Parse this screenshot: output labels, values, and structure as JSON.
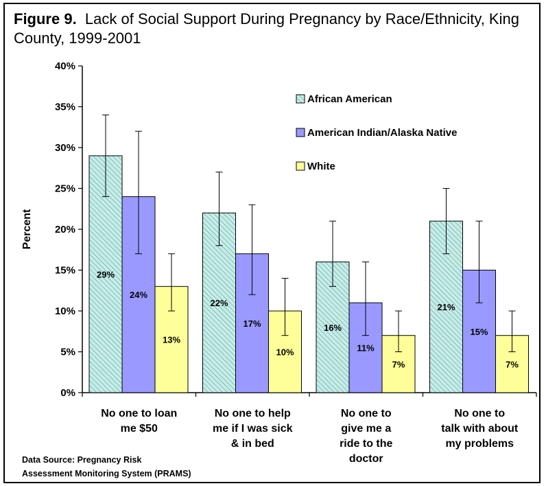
{
  "figure": {
    "label": "Figure 9.",
    "title": "Lack of Social Support During Pregnancy by Race/Ethnicity, King County, 1999-2001"
  },
  "source": {
    "line1": "Data Source: Pregnancy Risk",
    "line2": "Assessment Monitoring System (PRAMS)"
  },
  "chart_data": {
    "type": "bar",
    "ylabel": "Percent",
    "xlabel": "",
    "ylim": [
      0,
      40
    ],
    "yticks": [
      "0%",
      "5%",
      "10%",
      "15%",
      "20%",
      "25%",
      "30%",
      "35%",
      "40%"
    ],
    "grid": false,
    "legend_position": "top-right",
    "categories": [
      [
        "No one to loan",
        "me $50"
      ],
      [
        "No one  to help",
        "me if I was sick",
        "& in bed"
      ],
      [
        "No one to",
        "give me a",
        "ride to the",
        "doctor"
      ],
      [
        "No one to",
        "talk with about",
        "my problems"
      ]
    ],
    "series": [
      {
        "name": "African American",
        "color": "#c8ece6",
        "pattern": "diagonal-hatch",
        "values": [
          29,
          22,
          16,
          21
        ],
        "labels": [
          "29%",
          "22%",
          "16%",
          "21%"
        ],
        "ci_low": [
          24,
          18,
          13,
          17
        ],
        "ci_high": [
          34,
          27,
          21,
          25
        ]
      },
      {
        "name": "American Indian/Alaska Native",
        "color": "#9999ff",
        "pattern": "solid",
        "values": [
          24,
          17,
          11,
          15
        ],
        "labels": [
          "24%",
          "17%",
          "11%",
          "15%"
        ],
        "ci_low": [
          17,
          12,
          7,
          11
        ],
        "ci_high": [
          32,
          23,
          16,
          21
        ]
      },
      {
        "name": "White",
        "color": "#ffff99",
        "pattern": "solid",
        "values": [
          13,
          10,
          7,
          7
        ],
        "labels": [
          "13%",
          "10%",
          "7%",
          "7%"
        ],
        "ci_low": [
          10,
          7,
          5,
          5
        ],
        "ci_high": [
          17,
          14,
          10,
          10
        ]
      }
    ]
  }
}
